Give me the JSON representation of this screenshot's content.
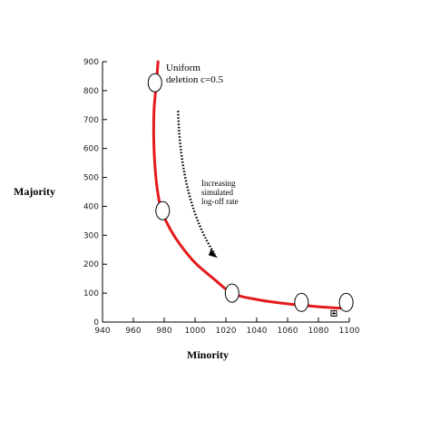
{
  "chart_data": {
    "type": "line",
    "xlabel": "Minority",
    "ylabel": "Majority",
    "xlim": [
      940,
      1100
    ],
    "ylim": [
      0,
      900
    ],
    "x_ticks": [
      940,
      960,
      980,
      1000,
      1020,
      1040,
      1060,
      1080,
      1100
    ],
    "y_ticks": [
      0,
      100,
      200,
      300,
      400,
      500,
      600,
      700,
      800,
      900
    ],
    "grid": false,
    "curve": {
      "color": "#e41a1c",
      "x": [
        976,
        975,
        973.5,
        973.2,
        974,
        975.5,
        978,
        983,
        990,
        1000,
        1012,
        1024,
        1040,
        1060,
        1080,
        1098
      ],
      "y": [
        900,
        830,
        740,
        640,
        540,
        460,
        390,
        330,
        270,
        205,
        150,
        100,
        78,
        63,
        53,
        47
      ]
    },
    "markers": [
      {
        "x": 974,
        "y": 827
      },
      {
        "x": 979,
        "y": 385
      },
      {
        "x": 1024,
        "y": 100
      },
      {
        "x": 1069,
        "y": 68
      },
      {
        "x": 1098,
        "y": 68
      }
    ],
    "square_marker": {
      "x": 1090,
      "y": 30
    },
    "annotations": {
      "uniform": [
        "Uniform",
        "deletion c=0.5"
      ],
      "increasing": [
        "Increasing",
        "simulated",
        "log-off rate"
      ]
    },
    "arrow": {
      "from": {
        "x": 989,
        "y": 730
      },
      "to": {
        "x": 1014,
        "y": 225
      }
    }
  }
}
